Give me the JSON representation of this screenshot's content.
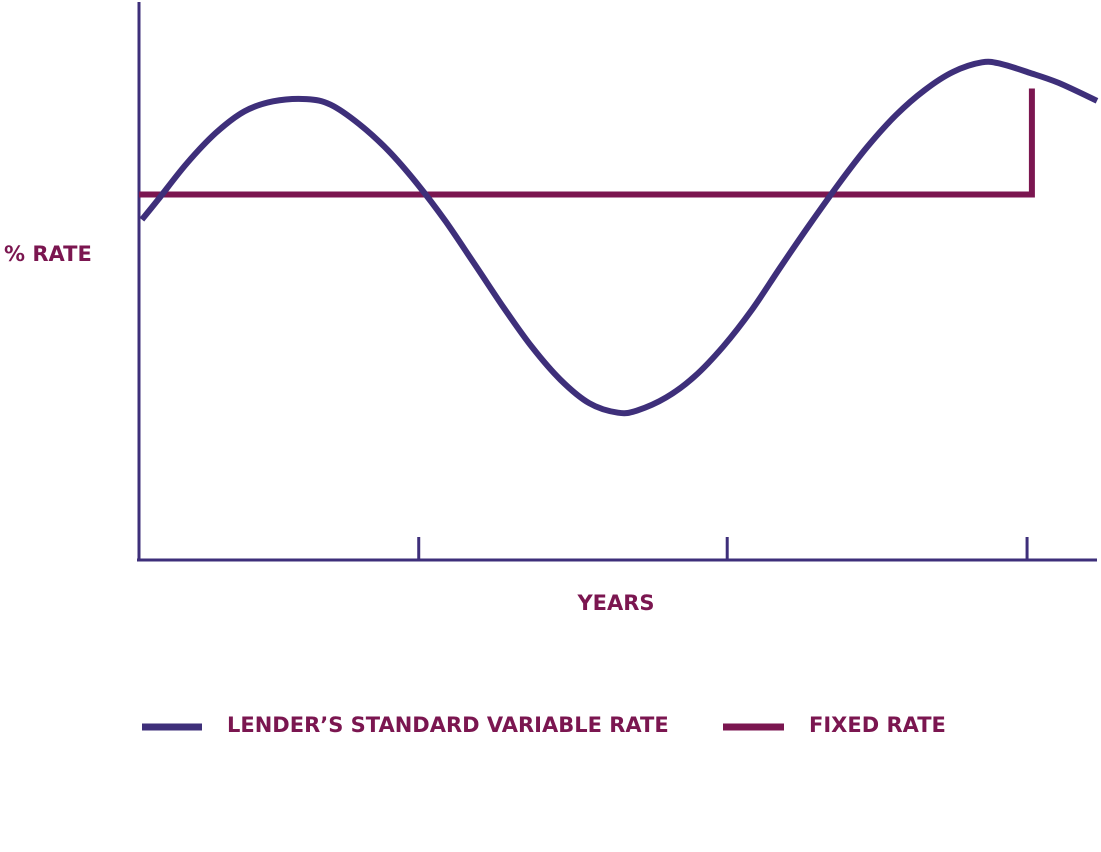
{
  "colors": {
    "axis": "#3e2f7a",
    "variable_series": "#3e2f7a",
    "fixed_series": "#7b1650",
    "label_text": "#7b1650"
  },
  "chart_data": {
    "type": "line",
    "title": "",
    "xlabel": "YEARS",
    "ylabel": "% RATE",
    "xlim": [
      0,
      100
    ],
    "ylim": [
      0,
      100
    ],
    "x_ticks": [
      29.2,
      61.4,
      92.7
    ],
    "x_tick_labels": [
      "",
      "",
      ""
    ],
    "y_tick_labels": [],
    "grid": false,
    "legend_position": "bottom",
    "series": [
      {
        "name": "LENDER’S STANDARD VARIABLE RATE",
        "color": "#3e2f7a",
        "x": [
          0.3,
          2,
          5,
          8,
          11,
          14,
          17.5,
          20,
          23,
          26,
          29,
          32,
          35,
          38,
          41,
          44,
          47,
          50,
          52,
          55,
          58,
          61,
          64,
          67,
          70,
          73,
          76,
          79,
          82,
          85,
          88,
          90,
          93,
          96,
          100
        ],
        "y": [
          61.0,
          64.6,
          71.1,
          76.5,
          80.4,
          82.2,
          82.6,
          81.6,
          78.1,
          73.4,
          67.5,
          60.7,
          53.1,
          45.4,
          38.2,
          32.3,
          28.1,
          26.4,
          26.8,
          29.1,
          32.9,
          38.3,
          44.9,
          52.6,
          60.1,
          67.3,
          74.0,
          79.7,
          84.2,
          87.5,
          89.2,
          88.9,
          87.3,
          85.5,
          82.3
        ]
      },
      {
        "name": "FIXED RATE",
        "color": "#7b1650",
        "x": [
          0,
          93.2,
          93.2
        ],
        "y": [
          65.5,
          65.5,
          84.5
        ]
      }
    ]
  }
}
